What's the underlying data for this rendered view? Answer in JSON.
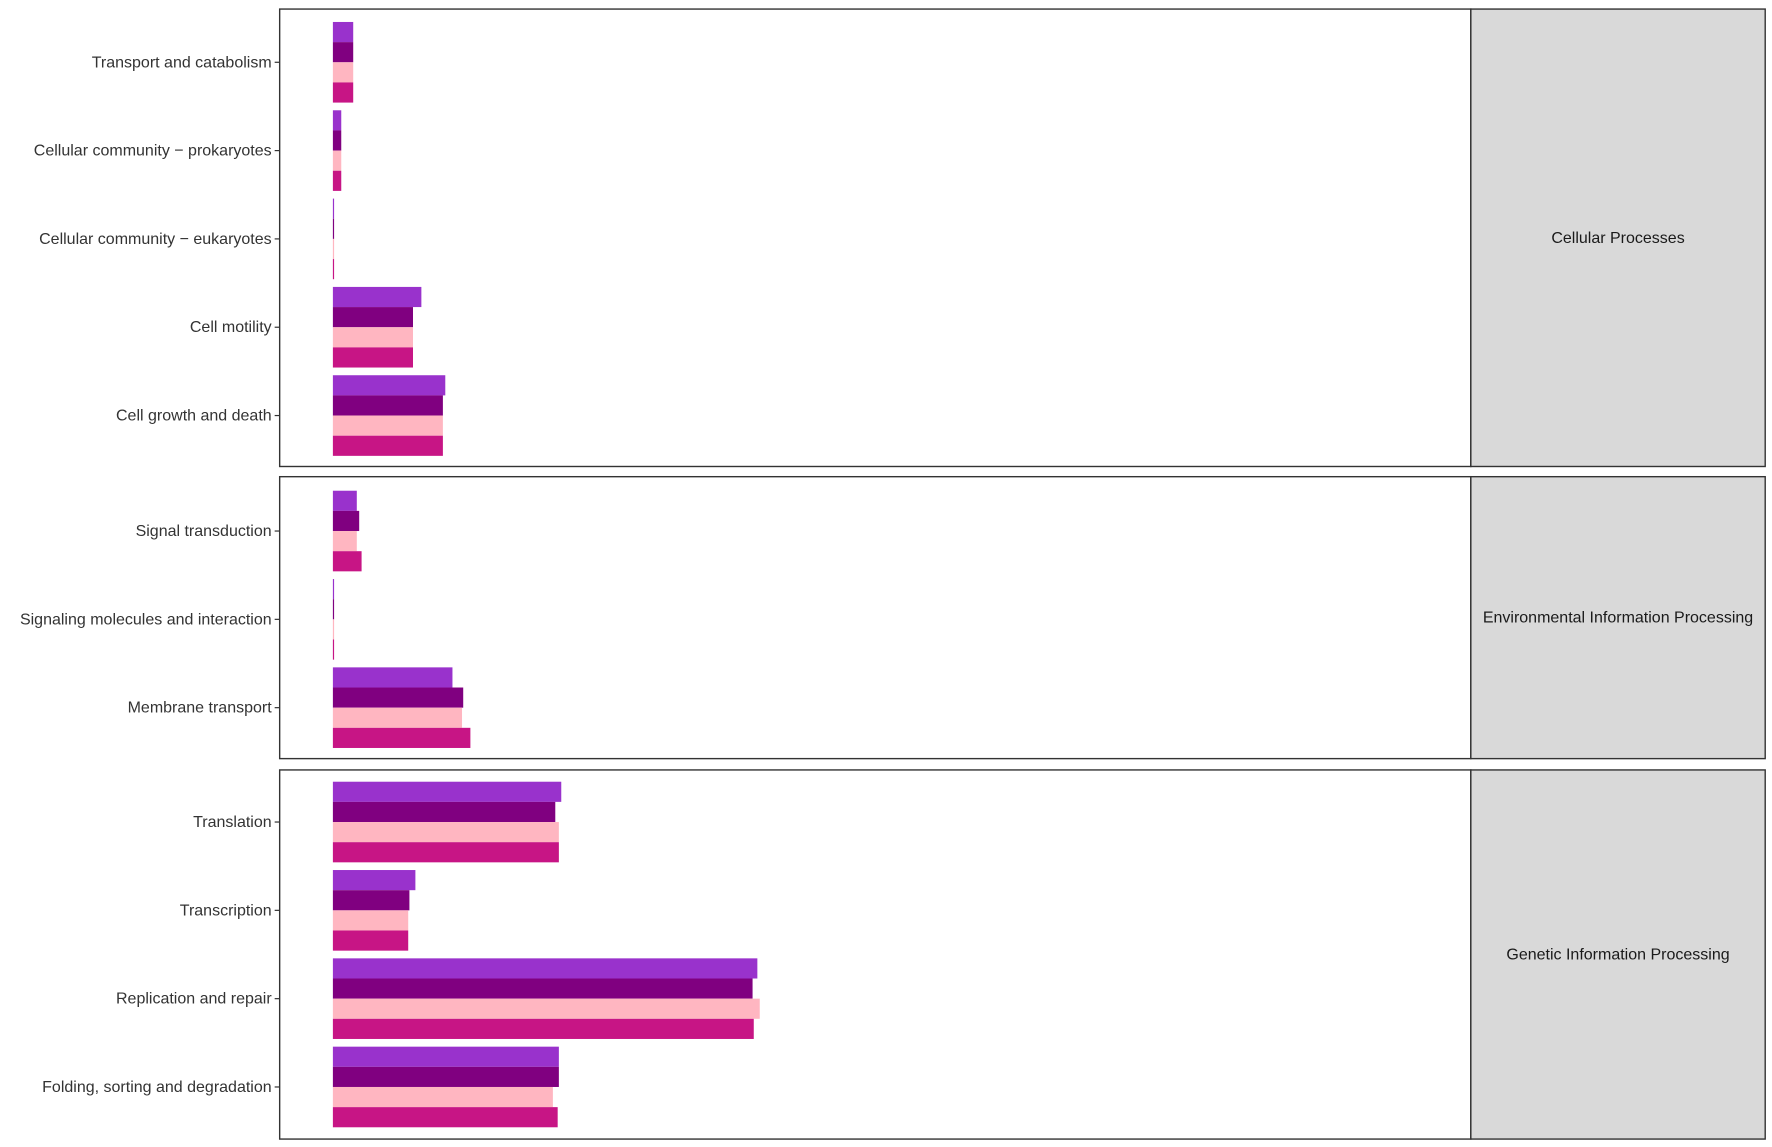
{
  "chart_data": {
    "type": "bar",
    "orientation": "horizontal",
    "grid": false,
    "legend": "none",
    "colors": [
      "#9932CC",
      "#800080",
      "#FFB6C1",
      "#C71585"
    ],
    "panels": [
      {
        "strip_label": "Cellular Processes",
        "categories": [
          "Transport and catabolism",
          "Cellular community − prokaryotes",
          "Cellular community − eukaryotes",
          "Cell motility",
          "Cell growth and death"
        ],
        "values": [
          [
            0.17,
            0.17,
            0.17,
            0.17
          ],
          [
            0.07,
            0.07,
            0.07,
            0.07
          ],
          [
            0.01,
            0.01,
            0.01,
            0.01
          ],
          [
            0.74,
            0.67,
            0.67,
            0.67
          ],
          [
            0.94,
            0.92,
            0.92,
            0.92
          ]
        ]
      },
      {
        "strip_label": "Environmental Information Processing",
        "categories": [
          "Signal transduction",
          "Signaling molecules and interaction",
          "Membrane transport"
        ],
        "values": [
          [
            0.2,
            0.22,
            0.2,
            0.24
          ],
          [
            0.01,
            0.01,
            0.01,
            0.01
          ],
          [
            1.0,
            1.09,
            1.08,
            1.15
          ]
        ]
      },
      {
        "strip_label": "Genetic Information Processing",
        "categories": [
          "Translation",
          "Transcription",
          "Replication and repair",
          "Folding, sorting and degradation"
        ],
        "values": [
          [
            1.91,
            1.86,
            1.89,
            1.89
          ],
          [
            0.69,
            0.64,
            0.63,
            0.63
          ],
          [
            3.55,
            3.51,
            3.57,
            3.52
          ],
          [
            1.89,
            1.89,
            1.84,
            1.88
          ]
        ]
      }
    ]
  }
}
